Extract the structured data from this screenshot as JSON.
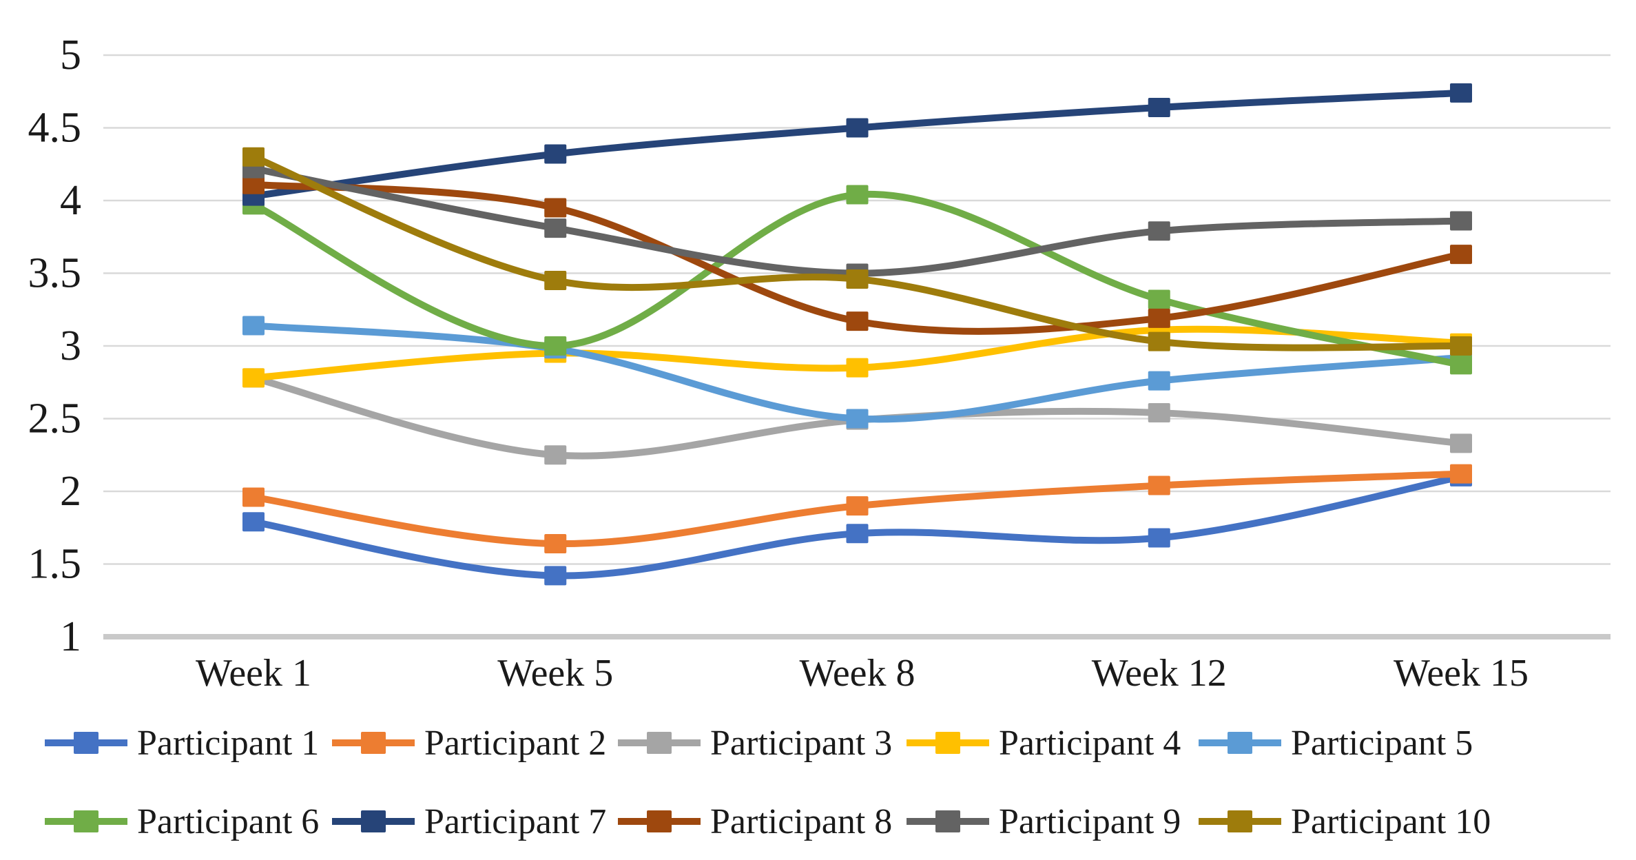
{
  "chart_data": {
    "type": "line",
    "title": "",
    "xlabel": "",
    "ylabel": "",
    "categories": [
      "Week 1",
      "Week 5",
      "Week 8",
      "Week 12",
      "Week 15"
    ],
    "y_ticks": [
      5,
      4.5,
      4,
      3.5,
      3,
      2.5,
      2,
      1.5,
      1
    ],
    "y_tick_labels": [
      "5",
      "4.5",
      "4",
      "3.5",
      "3",
      "2.5",
      "2",
      "1.5",
      "1"
    ],
    "ylim": [
      1,
      5
    ],
    "grid": true,
    "line_style": "smooth",
    "marker": "square",
    "legend_position": "bottom",
    "gridline_color": "#D9D9D9",
    "axis_line_color": "#C9C9C9",
    "series": [
      {
        "name": "Participant 1",
        "color": "#4472C4",
        "values": [
          1.79,
          1.42,
          1.71,
          1.68,
          2.1
        ]
      },
      {
        "name": "Participant 2",
        "color": "#ED7D31",
        "values": [
          1.96,
          1.64,
          1.9,
          2.04,
          2.12
        ]
      },
      {
        "name": "Participant 3",
        "color": "#A5A5A5",
        "values": [
          2.78,
          2.25,
          2.49,
          2.54,
          2.33
        ]
      },
      {
        "name": "Participant 4",
        "color": "#FFC000",
        "values": [
          2.78,
          2.95,
          2.85,
          3.11,
          3.02
        ]
      },
      {
        "name": "Participant 5",
        "color": "#5B9BD5",
        "values": [
          3.14,
          2.98,
          2.5,
          2.76,
          2.92
        ]
      },
      {
        "name": "Participant 6",
        "color": "#70AD47",
        "values": [
          3.97,
          3.0,
          4.04,
          3.32,
          2.87
        ]
      },
      {
        "name": "Participant 7",
        "color": "#264478",
        "values": [
          4.03,
          4.32,
          4.5,
          4.64,
          4.74
        ]
      },
      {
        "name": "Participant 8",
        "color": "#9E480E",
        "values": [
          4.11,
          3.95,
          3.17,
          3.19,
          3.63
        ]
      },
      {
        "name": "Participant 9",
        "color": "#636363",
        "values": [
          4.22,
          3.81,
          3.5,
          3.79,
          3.86
        ]
      },
      {
        "name": "Participant 10",
        "color": "#9E7C0C",
        "values": [
          4.3,
          3.45,
          3.46,
          3.03,
          3.0
        ]
      }
    ]
  }
}
